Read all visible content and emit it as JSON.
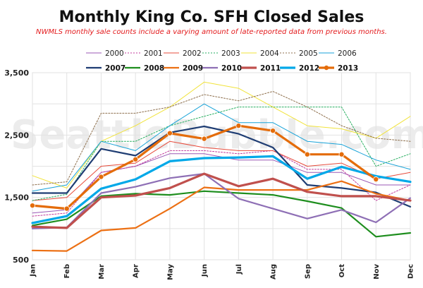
{
  "chart_data": {
    "type": "line",
    "title": "Monthly King Co. SFH Closed Sales",
    "subtitle": "NWMLS monthly sale counts include a varying amount of late-reported  data from previous months.",
    "watermark": "SeattleBubble.com",
    "categories": [
      "Jan",
      "Feb",
      "Mar",
      "Apr",
      "May",
      "Jun",
      "Jul",
      "Aug",
      "Sep",
      "Oct",
      "Nov",
      "Dec"
    ],
    "ylim": [
      500,
      3500
    ],
    "yticks": [
      "3,500",
      "2,500",
      "1,500",
      "500"
    ],
    "ytick_values": [
      3500,
      2500,
      1500,
      500
    ],
    "grid": true,
    "legend_position": "top",
    "series": [
      {
        "name": "2000",
        "color": "#9b59b6",
        "style": "thin",
        "values": [
          1250,
          1300,
          1900,
          2000,
          2200,
          2200,
          2100,
          2100,
          1900,
          1900,
          1700,
          1700
        ]
      },
      {
        "name": "2001",
        "color": "#c0399b",
        "style": "thin-dotted",
        "values": [
          1200,
          1250,
          1900,
          2000,
          2250,
          2250,
          2200,
          2250,
          1950,
          1950,
          1450,
          1700
        ]
      },
      {
        "name": "2002",
        "color": "#e74c3c",
        "style": "thin",
        "values": [
          1450,
          1500,
          2000,
          2050,
          2400,
          2300,
          2250,
          2250,
          2000,
          2050,
          1800,
          1900
        ]
      },
      {
        "name": "2003",
        "color": "#27ae60",
        "style": "thin-dotted",
        "values": [
          1450,
          1550,
          2400,
          2400,
          2650,
          2800,
          2950,
          2950,
          2950,
          2950,
          2000,
          2200
        ]
      },
      {
        "name": "2004",
        "color": "#f1e33b",
        "style": "thin",
        "values": [
          1850,
          1650,
          2400,
          2650,
          2950,
          3350,
          3250,
          2950,
          2650,
          2600,
          2450,
          2800
        ]
      },
      {
        "name": "2005",
        "color": "#8d6e4b",
        "style": "thin-dotted",
        "values": [
          1700,
          1750,
          2850,
          2850,
          2950,
          3150,
          3050,
          3200,
          2950,
          2650,
          2450,
          2400
        ]
      },
      {
        "name": "2006",
        "color": "#17a2d8",
        "style": "thin",
        "values": [
          1600,
          1700,
          2400,
          2250,
          2650,
          3000,
          2700,
          2700,
          2400,
          2350,
          2100,
          1950
        ]
      },
      {
        "name": "2007",
        "color": "#1f3d73",
        "style": "thick",
        "values": [
          1570,
          1570,
          2280,
          2170,
          2540,
          2640,
          2520,
          2300,
          1700,
          1650,
          1580,
          1350
        ]
      },
      {
        "name": "2008",
        "color": "#1e8e1e",
        "style": "thick",
        "values": [
          1050,
          1150,
          1520,
          1560,
          1540,
          1600,
          1570,
          1540,
          1440,
          1330,
          870,
          930
        ]
      },
      {
        "name": "2009",
        "color": "#ec7014",
        "style": "thick",
        "values": [
          650,
          640,
          970,
          1010,
          1320,
          1660,
          1620,
          1620,
          1620,
          1760,
          1560,
          1450
        ]
      },
      {
        "name": "2010",
        "color": "#8e6fb5",
        "style": "thick",
        "values": [
          1000,
          1020,
          1570,
          1670,
          1810,
          1880,
          1480,
          1320,
          1160,
          1300,
          1100,
          1490
        ]
      },
      {
        "name": "2011",
        "color": "#c0504d",
        "style": "thickest",
        "values": [
          1030,
          1010,
          1500,
          1530,
          1650,
          1880,
          1680,
          1800,
          1590,
          1520,
          1520,
          1450
        ]
      },
      {
        "name": "2012",
        "color": "#00a8e8",
        "style": "thickest",
        "values": [
          1090,
          1200,
          1640,
          1790,
          2080,
          2130,
          2140,
          2160,
          1800,
          1990,
          1840,
          1750
        ]
      },
      {
        "name": "2013",
        "color": "#e46c0a",
        "style": "marker",
        "values": [
          1370,
          1320,
          1830,
          2110,
          2530,
          2440,
          2650,
          2570,
          2190,
          2190,
          1790,
          null
        ]
      }
    ]
  }
}
